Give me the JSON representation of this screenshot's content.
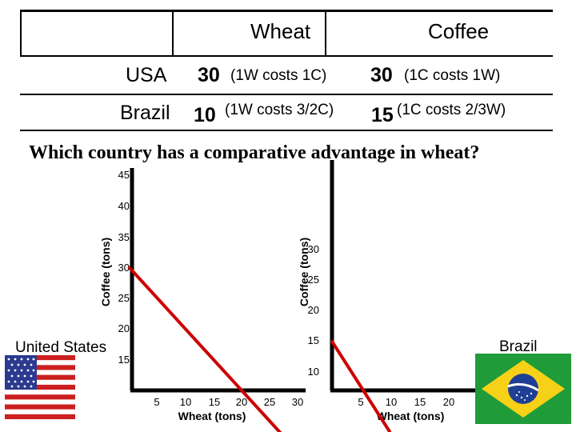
{
  "table": {
    "headers": {
      "wheat": "Wheat",
      "coffee": "Coffee"
    },
    "rows": [
      {
        "country": "USA",
        "wheat_value": "30",
        "wheat_note": "(1W costs 1C)",
        "coffee_value": "30",
        "coffee_note": "(1C costs 1W)"
      },
      {
        "country": "Brazil",
        "wheat_value": "10",
        "wheat_note": "(1W costs 3/2C)",
        "coffee_value": "15",
        "coffee_note": "(1C costs 2/3W)"
      }
    ]
  },
  "question": "Which country has a comparative advantage in wheat?",
  "colors": {
    "frontier_line": "#cc0000",
    "axis": "#000000"
  },
  "flags": {
    "usa": "us-flag-icon",
    "brazil": "brazil-flag-icon"
  },
  "chart_data": [
    {
      "type": "line",
      "label": "United States",
      "xlabel": "Wheat (tons)",
      "ylabel": "Coffee (tons)",
      "x_ticks": [
        "5",
        "10",
        "15",
        "20",
        "25",
        "30"
      ],
      "y_ticks": [
        "45",
        "40",
        "35",
        "30",
        "25",
        "20",
        "15"
      ],
      "xlim": [
        0,
        30
      ],
      "ylim": [
        15,
        45
      ],
      "series": [
        {
          "x": [
            0,
            30
          ],
          "y": [
            30,
            0
          ]
        }
      ]
    },
    {
      "type": "line",
      "label": "Brazil",
      "xlabel": "Wheat (tons)",
      "ylabel": "Coffee (tons)",
      "x_ticks": [
        "5",
        "10",
        "15",
        "20"
      ],
      "y_ticks": [
        "30",
        "25",
        "20",
        "15",
        "10"
      ],
      "xlim": [
        0,
        20
      ],
      "ylim": [
        10,
        30
      ],
      "series": [
        {
          "x": [
            0,
            10
          ],
          "y": [
            15,
            0
          ]
        }
      ]
    }
  ]
}
